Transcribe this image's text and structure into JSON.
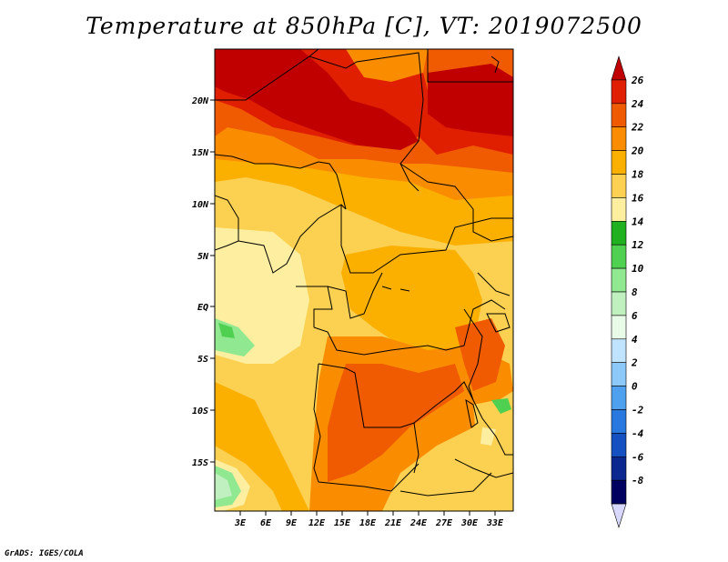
{
  "title": "Temperature at 850hPa [C], VT: 2019072500",
  "credit": "GrADS: IGES/COLA",
  "map": {
    "lat_labels": [
      "20N",
      "15N",
      "10N",
      "5N",
      "EQ",
      "5S",
      "10S",
      "15S"
    ],
    "lon_labels": [
      "3E",
      "6E",
      "9E",
      "12E",
      "15E",
      "18E",
      "21E",
      "24E",
      "27E",
      "30E",
      "33E"
    ]
  },
  "colorbar": {
    "labels": [
      "26",
      "24",
      "22",
      "20",
      "18",
      "16",
      "14",
      "12",
      "10",
      "8",
      "6",
      "4",
      "2",
      "0",
      "-2",
      "-4",
      "-6",
      "-8"
    ],
    "colors": [
      "#c00000",
      "#e01e00",
      "#f05a00",
      "#fa8c00",
      "#fbb000",
      "#fcd050",
      "#fdeea0",
      "#20b020",
      "#50d050",
      "#90e890",
      "#c0f0c0",
      "#e8fae8",
      "#c0e4ff",
      "#8cc8f8",
      "#50a0f0",
      "#2878e0",
      "#1450c0",
      "#0a2890",
      "#000060",
      "#d8d8ff"
    ]
  }
}
